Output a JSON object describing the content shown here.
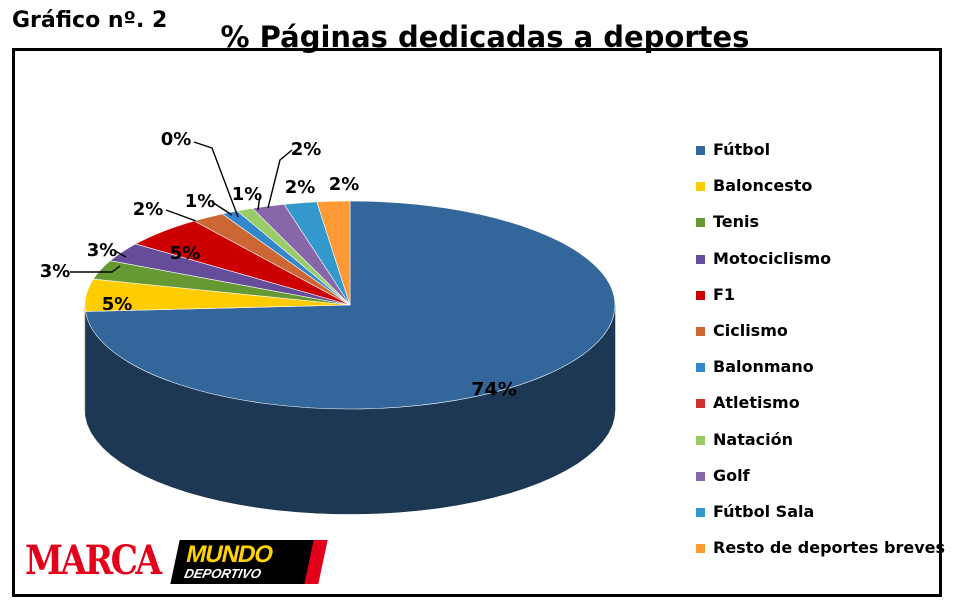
{
  "figure_label": "Gráfico nº. 2",
  "chart_data": {
    "type": "pie",
    "title": "% Páginas dedicadas a deportes",
    "categories": [
      "Fútbol",
      "Baloncesto",
      "Tenis",
      "Motociclismo",
      "F1",
      "Ciclismo",
      "Balonmano",
      "Atletismo",
      "Natación",
      "Golf",
      "Fútbol Sala",
      "Resto de deportes breves"
    ],
    "values": [
      74,
      5,
      3,
      3,
      5,
      2,
      1,
      0,
      1,
      2,
      2,
      2
    ],
    "data_labels": [
      "74%",
      "5%",
      "3%",
      "3%",
      "5%",
      "2%",
      "1%",
      "0%",
      "1%",
      "2%",
      "2%",
      "2%"
    ],
    "colors": [
      "#33669a",
      "#ffcc00",
      "#669933",
      "#664d99",
      "#cc0000",
      "#cc6633",
      "#3388cc",
      "#cc3333",
      "#99cc66",
      "#8866aa",
      "#3399cc",
      "#ff9933"
    ],
    "legend_labels": [
      "Fútbol",
      "Baloncesto",
      " Tenis",
      "Motociclismo",
      "F1",
      "Ciclismo",
      "Balonmano",
      "Atletismo",
      "Natación",
      "Golf",
      "Fútbol Sala",
      "Resto de deportes breves"
    ],
    "legend_position": "right",
    "style": "3d-pie"
  },
  "logos": {
    "marca": "MARCA",
    "mundo_line1": "MUNDO",
    "mundo_line2": "DEPORTIVO"
  }
}
